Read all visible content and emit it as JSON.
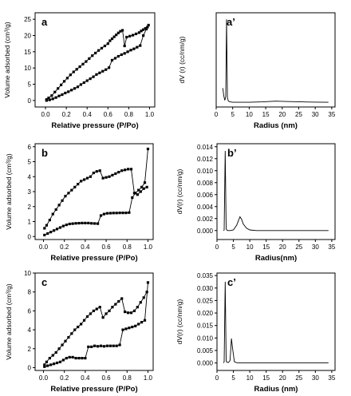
{
  "chart_data": [
    {
      "type": "scatter",
      "panel_label": "a",
      "xlabel": "Relative pressure (P/Po)",
      "ylabel": "Volume adsorbed (cm³/g)",
      "xlim": [
        -0.1,
        1.05
      ],
      "ylim": [
        -2,
        27
      ],
      "xticks": [
        0.0,
        0.2,
        0.4,
        0.6,
        0.8,
        1.0
      ],
      "xticklabels": [
        "0.0",
        "0.2",
        "0.4",
        "0.6",
        "0.8",
        "1.0"
      ],
      "yticks": [
        0,
        5,
        10,
        15,
        20,
        25
      ],
      "yticklabels": [
        "0",
        "5",
        "10",
        "15",
        "20",
        "25"
      ],
      "series": [
        {
          "x": [
            0.01,
            0.04,
            0.07,
            0.1,
            0.13,
            0.16,
            0.19,
            0.22,
            0.25,
            0.28,
            0.31,
            0.34,
            0.37,
            0.4,
            0.43,
            0.46,
            0.49,
            0.52,
            0.55,
            0.58,
            0.61,
            0.64,
            0.67,
            0.7,
            0.73,
            0.76,
            0.79,
            0.82,
            0.85,
            0.88,
            0.91,
            0.94,
            0.97,
            0.99
          ],
          "y": [
            0.0,
            0.2,
            0.5,
            0.9,
            1.4,
            1.8,
            2.3,
            2.7,
            3.2,
            3.7,
            4.2,
            4.9,
            5.5,
            6.1,
            6.7,
            7.3,
            8.0,
            8.5,
            9.0,
            9.5,
            10.1,
            12.4,
            13.0,
            13.6,
            14.1,
            14.5,
            15.0,
            15.5,
            15.9,
            16.4,
            16.9,
            20.0,
            22.0,
            23.2
          ]
        },
        {
          "x": [
            0.98,
            0.96,
            0.94,
            0.92,
            0.9,
            0.87,
            0.84,
            0.81,
            0.78,
            0.76,
            0.74,
            0.72,
            0.7,
            0.68,
            0.66,
            0.64,
            0.62,
            0.6,
            0.57,
            0.54,
            0.51,
            0.48,
            0.45,
            0.42,
            0.39,
            0.36,
            0.33,
            0.3,
            0.27,
            0.24,
            0.21,
            0.18,
            0.15,
            0.12,
            0.09,
            0.06,
            0.03,
            0.01
          ],
          "y": [
            22.6,
            22.2,
            21.8,
            21.4,
            20.9,
            20.5,
            20.1,
            19.8,
            19.5,
            16.8,
            21.6,
            21.3,
            20.8,
            20.2,
            19.6,
            19.0,
            18.4,
            17.5,
            16.8,
            16.1,
            15.4,
            14.6,
            13.8,
            12.9,
            12.0,
            11.2,
            10.4,
            9.6,
            8.8,
            7.9,
            6.9,
            5.9,
            4.8,
            3.7,
            2.6,
            1.5,
            0.8,
            0.3
          ]
        }
      ]
    },
    {
      "type": "line",
      "panel_label": "a’",
      "xlabel": "Radius (nm)",
      "ylabel": "dV (r) (cc/nm/g)",
      "xlim": [
        0,
        36
      ],
      "xticks": [
        0,
        5,
        10,
        15,
        20,
        25,
        30,
        35
      ],
      "xticklabels": [
        "0",
        "5",
        "10",
        "15",
        "20",
        "25",
        "30",
        "35"
      ],
      "series": [
        {
          "x": [
            2.0,
            2.3,
            2.6,
            2.9,
            3.15,
            3.4,
            3.7,
            4.2,
            5.0,
            7.0,
            10.0,
            14.0,
            18.0,
            22.0,
            26.0,
            30.0,
            34.0
          ],
          "y": [
            0.15,
            0.07,
            0.02,
            0.06,
            0.88,
            0.05,
            0.012,
            0.004,
            0.0,
            0.0,
            0.0,
            0.004,
            0.012,
            0.008,
            0.004,
            0.002,
            0.0
          ]
        }
      ]
    },
    {
      "type": "scatter",
      "panel_label": "b",
      "xlabel": "Relative pressure (P/Po)",
      "ylabel": "Volume adsorbed (cm³/g)",
      "xlim": [
        -0.08,
        1.05
      ],
      "ylim": [
        -0.2,
        6.2
      ],
      "xticks": [
        0.0,
        0.2,
        0.4,
        0.6,
        0.8,
        1.0
      ],
      "xticklabels": [
        "0.0",
        "0.2",
        "0.4",
        "0.6",
        "0.8",
        "1.0"
      ],
      "yticks": [
        0,
        1,
        2,
        3,
        4,
        5,
        6
      ],
      "yticklabels": [
        "0",
        "1",
        "2",
        "3",
        "4",
        "5",
        "6"
      ],
      "series": [
        {
          "x": [
            0.01,
            0.04,
            0.07,
            0.1,
            0.13,
            0.16,
            0.19,
            0.22,
            0.25,
            0.28,
            0.31,
            0.34,
            0.37,
            0.4,
            0.43,
            0.46,
            0.49,
            0.52,
            0.55,
            0.58,
            0.61,
            0.64,
            0.67,
            0.7,
            0.73,
            0.76,
            0.79,
            0.82,
            0.85,
            0.88,
            0.91,
            0.94,
            0.97,
            1.0
          ],
          "y": [
            0.1,
            0.2,
            0.3,
            0.4,
            0.5,
            0.6,
            0.7,
            0.78,
            0.84,
            0.86,
            0.88,
            0.89,
            0.9,
            0.9,
            0.9,
            0.88,
            0.87,
            0.86,
            1.4,
            1.5,
            1.55,
            1.56,
            1.57,
            1.57,
            1.58,
            1.58,
            1.58,
            1.6,
            2.6,
            2.9,
            3.1,
            3.3,
            3.6,
            5.85
          ]
        },
        {
          "x": [
            0.99,
            0.96,
            0.93,
            0.9,
            0.87,
            0.84,
            0.81,
            0.78,
            0.75,
            0.72,
            0.69,
            0.66,
            0.63,
            0.6,
            0.57,
            0.54,
            0.51,
            0.48,
            0.45,
            0.42,
            0.39,
            0.36,
            0.33,
            0.3,
            0.27,
            0.24,
            0.21,
            0.18,
            0.15,
            0.12,
            0.09,
            0.06,
            0.03,
            0.01
          ],
          "y": [
            3.3,
            3.2,
            3.0,
            2.8,
            2.9,
            4.5,
            4.5,
            4.45,
            4.4,
            4.3,
            4.2,
            4.1,
            4.0,
            3.95,
            3.9,
            4.4,
            4.35,
            4.25,
            4.0,
            3.9,
            3.8,
            3.7,
            3.5,
            3.3,
            3.1,
            2.9,
            2.7,
            2.4,
            2.1,
            1.8,
            1.5,
            1.1,
            0.75,
            0.55
          ]
        }
      ]
    },
    {
      "type": "line",
      "panel_label": "b’",
      "xlabel": "Radius(nm)",
      "ylabel": "dV(r) (cc/nm/g)",
      "xlim": [
        0,
        36
      ],
      "ylim": [
        -0.0015,
        0.0145
      ],
      "xticks": [
        0,
        5,
        10,
        15,
        20,
        25,
        30,
        35
      ],
      "xticklabels": [
        "0",
        "5",
        "10",
        "15",
        "20",
        "25",
        "30",
        "35"
      ],
      "yticks": [
        0.0,
        0.002,
        0.004,
        0.006,
        0.008,
        0.01,
        0.012,
        0.014
      ],
      "yticklabels": [
        "0.000",
        "0.002",
        "0.004",
        "0.006",
        "0.008",
        "0.010",
        "0.012",
        "0.014"
      ],
      "series": [
        {
          "x": [
            2.0,
            2.2,
            2.5,
            2.8,
            3.0,
            3.3,
            4.0,
            5.0,
            6.0,
            6.5,
            7.0,
            7.5,
            8.0,
            9.0,
            10.0,
            12.0,
            15.0,
            20.0,
            25.0,
            30.0,
            34.0
          ],
          "y": [
            0.0,
            0.0001,
            0.0133,
            0.0003,
            0.0001,
            0.0,
            0.0,
            0.0001,
            0.0009,
            0.0016,
            0.0023,
            0.0019,
            0.0011,
            0.0004,
            0.0001,
            0.0,
            0.0,
            0.0,
            0.0,
            0.0,
            0.0
          ]
        }
      ]
    },
    {
      "type": "scatter",
      "panel_label": "c",
      "xlabel": "Relative pressure (P/Po)",
      "ylabel": "Volume adsorbed (cm³/g)",
      "xlim": [
        -0.08,
        1.05
      ],
      "ylim": [
        -0.3,
        10
      ],
      "xticks": [
        0.0,
        0.2,
        0.4,
        0.6,
        0.8,
        1.0
      ],
      "xticklabels": [
        "0.0",
        "0.2",
        "0.4",
        "0.6",
        "0.8",
        "1.0"
      ],
      "yticks": [
        0,
        2,
        4,
        6,
        8,
        10
      ],
      "yticklabels": [
        "0",
        "2",
        "4",
        "6",
        "8",
        "10"
      ],
      "series": [
        {
          "x": [
            0.01,
            0.04,
            0.07,
            0.1,
            0.13,
            0.16,
            0.19,
            0.22,
            0.25,
            0.28,
            0.31,
            0.34,
            0.37,
            0.4,
            0.43,
            0.46,
            0.49,
            0.52,
            0.55,
            0.58,
            0.61,
            0.64,
            0.67,
            0.7,
            0.73,
            0.76,
            0.79,
            0.82,
            0.85,
            0.88,
            0.91,
            0.94,
            0.97,
            1.0
          ],
          "y": [
            0.1,
            0.2,
            0.3,
            0.4,
            0.5,
            0.6,
            0.8,
            1.0,
            1.1,
            1.1,
            1.0,
            1.0,
            1.0,
            1.0,
            2.2,
            2.2,
            2.3,
            2.25,
            2.3,
            2.25,
            2.3,
            2.3,
            2.3,
            2.3,
            2.4,
            4.0,
            4.1,
            4.2,
            4.3,
            4.4,
            4.6,
            4.8,
            5.0,
            9.0
          ]
        },
        {
          "x": [
            0.99,
            0.96,
            0.93,
            0.9,
            0.87,
            0.84,
            0.81,
            0.78,
            0.75,
            0.72,
            0.69,
            0.66,
            0.63,
            0.6,
            0.57,
            0.54,
            0.51,
            0.48,
            0.45,
            0.42,
            0.39,
            0.36,
            0.33,
            0.3,
            0.27,
            0.24,
            0.21,
            0.18,
            0.15,
            0.12,
            0.09,
            0.06,
            0.03,
            0.01
          ],
          "y": [
            8.0,
            7.4,
            6.9,
            6.4,
            6.0,
            5.8,
            5.8,
            5.9,
            7.3,
            7.0,
            6.7,
            6.4,
            6.0,
            5.7,
            5.3,
            6.4,
            6.2,
            6.0,
            5.7,
            5.4,
            5.0,
            4.6,
            4.3,
            4.0,
            3.6,
            3.2,
            2.8,
            2.4,
            2.0,
            1.6,
            1.3,
            1.0,
            0.6,
            0.3
          ]
        }
      ]
    },
    {
      "type": "line",
      "panel_label": "c’",
      "xlabel": "Radius (nm)",
      "ylabel": "dV(r) (cc/nm/g)",
      "xlim": [
        0,
        36
      ],
      "ylim": [
        -0.003,
        0.036
      ],
      "xticks": [
        0,
        5,
        10,
        15,
        20,
        25,
        30,
        35
      ],
      "xticklabels": [
        "0",
        "5",
        "10",
        "15",
        "20",
        "25",
        "30",
        "35"
      ],
      "yticks": [
        0.0,
        0.005,
        0.01,
        0.015,
        0.02,
        0.025,
        0.03,
        0.035
      ],
      "yticklabels": [
        "0.000",
        "0.005",
        "0.010",
        "0.015",
        "0.020",
        "0.025",
        "0.030",
        "0.035"
      ],
      "series": [
        {
          "x": [
            2.0,
            2.2,
            2.5,
            2.8,
            3.0,
            3.5,
            4.0,
            4.4,
            4.8,
            5.3,
            6.0,
            7.0,
            10.0,
            15.0,
            20.0,
            25.0,
            30.0,
            34.0
          ],
          "y": [
            0.0,
            0.0005,
            0.0325,
            0.0008,
            0.0003,
            0.0002,
            0.001,
            0.0098,
            0.0055,
            0.0005,
            0.0001,
            0.0,
            0.0,
            0.0,
            0.0,
            0.0,
            0.0,
            0.0
          ]
        }
      ]
    }
  ]
}
